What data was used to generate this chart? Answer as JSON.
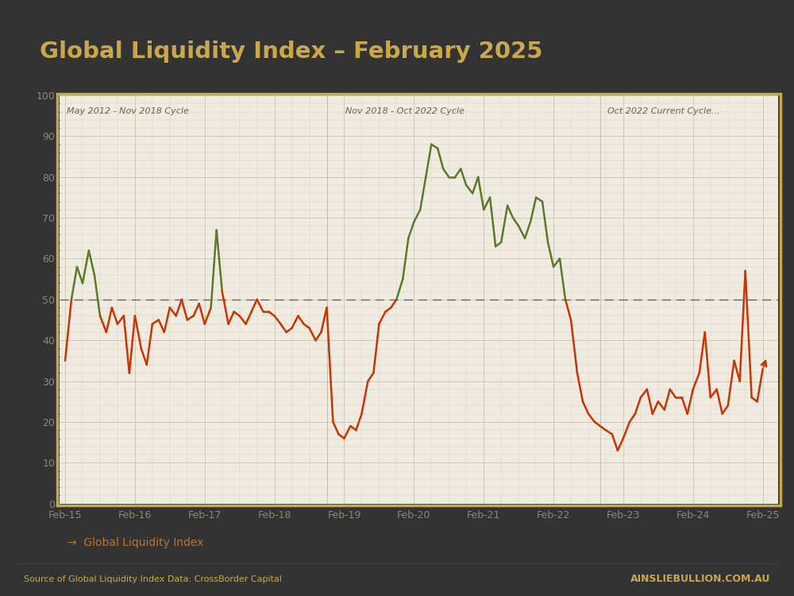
{
  "title": "Global Liquidity Index – February 2025",
  "title_color": "#c8a84b",
  "background_outer": "#333333",
  "background_inner": "#f0ebe0",
  "border_color": "#c8a84b",
  "grid_color": "#ccc4ad",
  "dashed_line_y": 50,
  "dashed_line_color": "#666655",
  "cycle_label_color": "#666644",
  "cycle_vlines": [
    2018.83,
    2022.75
  ],
  "cycle_labels": [
    {
      "text": "May 2012 - Nov 2018 Cycle",
      "xval": 2015.1
    },
    {
      "text": "Nov 2018 - Oct 2022 Cycle",
      "xval": 2019.1
    },
    {
      "text": "Oct 2022 Current Cycle...",
      "xval": 2022.85
    }
  ],
  "x_labels": [
    "Feb-15",
    "Feb-16",
    "Feb-17",
    "Feb-18",
    "Feb-19",
    "Feb-20",
    "Feb-21",
    "Feb-22",
    "Feb-23",
    "Feb-24",
    "Feb-25"
  ],
  "x_ticks": [
    2015.08,
    2016.08,
    2017.08,
    2018.08,
    2019.08,
    2020.08,
    2021.08,
    2022.08,
    2023.08,
    2024.08,
    2025.08
  ],
  "ylim": [
    0,
    100
  ],
  "xlim": [
    2015.0,
    2025.3
  ],
  "source_text": "Source of Global Liquidity Index Data: CrossBorder Capital",
  "source_color": "#c8a84b",
  "watermark": "AINSLIEBULLION.COM.AU",
  "legend_color": "#b87333",
  "below_50_color": "#cc3300",
  "above_50_color": "#5a7a2a",
  "line_x": [
    2015.08,
    2015.17,
    2015.25,
    2015.33,
    2015.42,
    2015.5,
    2015.58,
    2015.67,
    2015.75,
    2015.83,
    2015.92,
    2016.0,
    2016.08,
    2016.17,
    2016.25,
    2016.33,
    2016.42,
    2016.5,
    2016.58,
    2016.67,
    2016.75,
    2016.83,
    2016.92,
    2017.0,
    2017.08,
    2017.17,
    2017.25,
    2017.33,
    2017.42,
    2017.5,
    2017.58,
    2017.67,
    2017.75,
    2017.83,
    2017.92,
    2018.0,
    2018.08,
    2018.17,
    2018.25,
    2018.33,
    2018.42,
    2018.5,
    2018.58,
    2018.67,
    2018.75,
    2018.83,
    2018.92,
    2019.0,
    2019.08,
    2019.17,
    2019.25,
    2019.33,
    2019.42,
    2019.5,
    2019.58,
    2019.67,
    2019.75,
    2019.83,
    2019.92,
    2020.0,
    2020.08,
    2020.17,
    2020.25,
    2020.33,
    2020.42,
    2020.5,
    2020.58,
    2020.67,
    2020.75,
    2020.83,
    2020.92,
    2021.0,
    2021.08,
    2021.17,
    2021.25,
    2021.33,
    2021.42,
    2021.5,
    2021.58,
    2021.67,
    2021.75,
    2021.83,
    2021.92,
    2022.0,
    2022.08,
    2022.17,
    2022.25,
    2022.33,
    2022.42,
    2022.5,
    2022.58,
    2022.67,
    2022.75,
    2022.83,
    2022.92,
    2023.0,
    2023.08,
    2023.17,
    2023.25,
    2023.33,
    2023.42,
    2023.5,
    2023.58,
    2023.67,
    2023.75,
    2023.83,
    2023.92,
    2024.0,
    2024.08,
    2024.17,
    2024.25,
    2024.33,
    2024.42,
    2024.5,
    2024.58,
    2024.67,
    2024.75,
    2024.83,
    2024.92,
    2025.0,
    2025.08
  ],
  "line_y": [
    35,
    50,
    58,
    54,
    62,
    56,
    46,
    42,
    48,
    44,
    46,
    32,
    46,
    38,
    34,
    44,
    45,
    42,
    48,
    46,
    50,
    45,
    46,
    49,
    44,
    48,
    67,
    52,
    44,
    47,
    46,
    44,
    47,
    50,
    47,
    47,
    46,
    44,
    42,
    43,
    46,
    44,
    43,
    40,
    42,
    48,
    20,
    17,
    16,
    19,
    18,
    22,
    30,
    32,
    44,
    47,
    48,
    50,
    55,
    65,
    69,
    72,
    80,
    88,
    87,
    82,
    80,
    80,
    82,
    78,
    76,
    80,
    72,
    75,
    63,
    64,
    73,
    70,
    68,
    65,
    69,
    75,
    74,
    64,
    58,
    60,
    50,
    45,
    32,
    25,
    22,
    20,
    19,
    18,
    17,
    13,
    16,
    20,
    22,
    26,
    28,
    22,
    25,
    23,
    28,
    26,
    26,
    22,
    28,
    32,
    42,
    26,
    28,
    22,
    24,
    35,
    30,
    57,
    26,
    25,
    33
  ]
}
